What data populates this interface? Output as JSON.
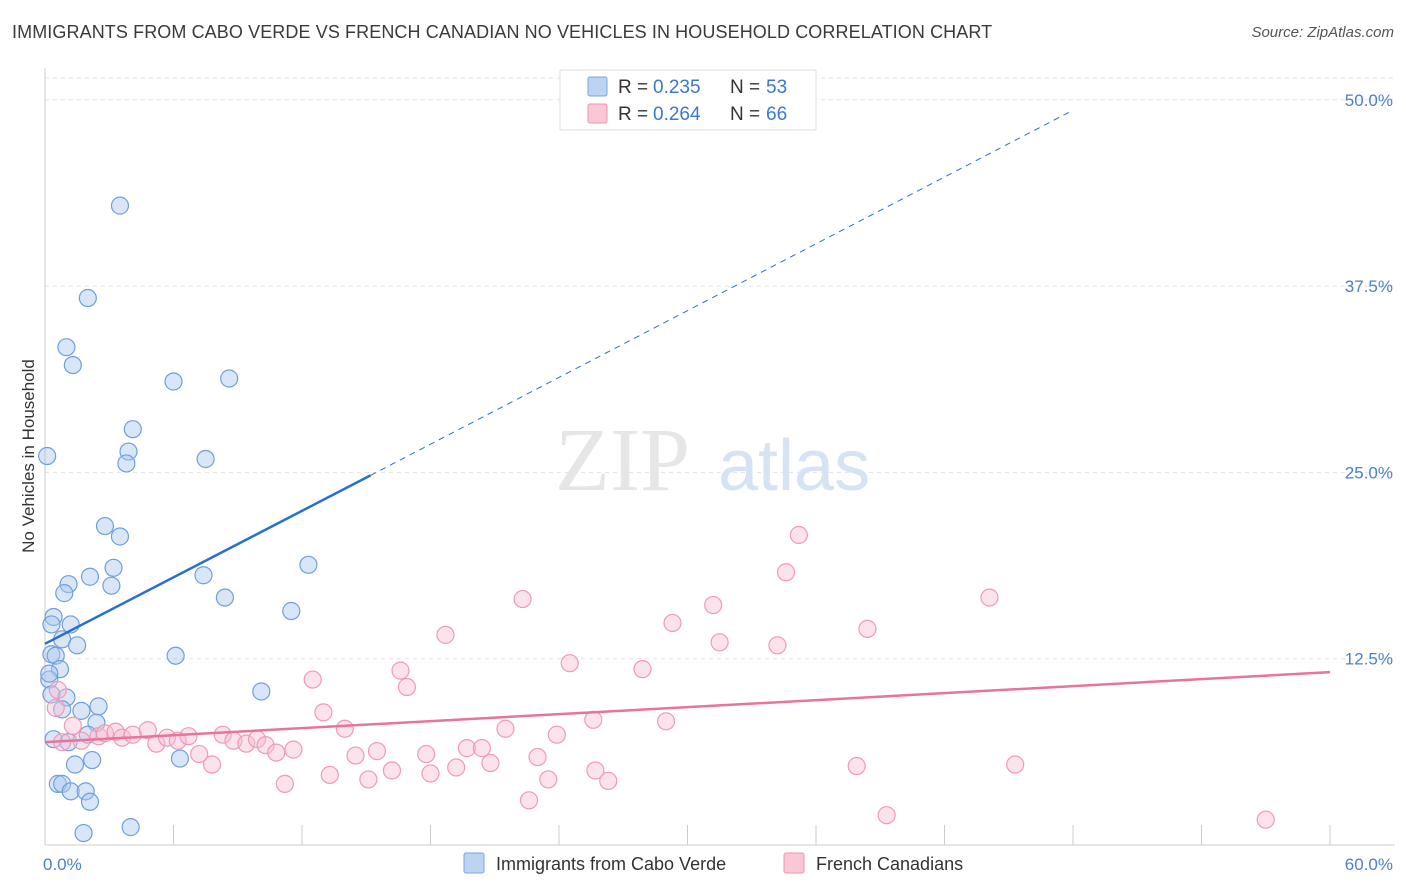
{
  "chart_data": {
    "type": "scatter",
    "title": "IMMIGRANTS FROM CABO VERDE VS FRENCH CANADIAN NO VEHICLES IN HOUSEHOLD CORRELATION CHART",
    "source": "Source: ZipAtlas.com",
    "xlabel": "",
    "ylabel": "No Vehicles in Household",
    "xlim": [
      0,
      60
    ],
    "ylim": [
      0,
      52
    ],
    "x_tick_labels": [
      "0.0%",
      "60.0%"
    ],
    "y_ticks": [
      12.5,
      25.0,
      37.5,
      50.0
    ],
    "y_tick_labels": [
      "12.5%",
      "25.0%",
      "37.5%",
      "50.0%"
    ],
    "watermark": "ZIPatlas",
    "series": [
      {
        "name": "Immigrants from Cabo Verde",
        "color": "#8fb8ea",
        "line_color": "#2a6fcf",
        "R": "0.235",
        "N": "53",
        "trend": {
          "x0": 0,
          "y0": 13.5,
          "x1": 15.2,
          "y1": 24.8,
          "dash_to_x": 48,
          "dash_to_y": 49.3
        },
        "points": [
          [
            3.5,
            42.9
          ],
          [
            2.0,
            36.7
          ],
          [
            1.0,
            33.4
          ],
          [
            1.3,
            32.2
          ],
          [
            6.0,
            31.1
          ],
          [
            8.6,
            31.3
          ],
          [
            4.1,
            27.9
          ],
          [
            3.9,
            26.4
          ],
          [
            3.8,
            25.6
          ],
          [
            7.5,
            25.9
          ],
          [
            0.1,
            26.1
          ],
          [
            2.8,
            21.4
          ],
          [
            3.5,
            20.7
          ],
          [
            3.2,
            18.6
          ],
          [
            2.1,
            18.0
          ],
          [
            12.3,
            18.8
          ],
          [
            7.4,
            18.1
          ],
          [
            1.1,
            17.5
          ],
          [
            3.1,
            17.4
          ],
          [
            0.9,
            16.9
          ],
          [
            8.4,
            16.6
          ],
          [
            11.5,
            15.7
          ],
          [
            0.4,
            15.3
          ],
          [
            0.3,
            14.8
          ],
          [
            1.2,
            14.8
          ],
          [
            0.8,
            13.8
          ],
          [
            1.5,
            13.4
          ],
          [
            6.1,
            12.7
          ],
          [
            0.3,
            12.8
          ],
          [
            0.5,
            12.7
          ],
          [
            0.7,
            11.8
          ],
          [
            0.2,
            11.1
          ],
          [
            10.1,
            10.3
          ],
          [
            0.3,
            10.1
          ],
          [
            1.0,
            9.9
          ],
          [
            2.5,
            9.3
          ],
          [
            1.7,
            9.0
          ],
          [
            0.8,
            9.1
          ],
          [
            2.4,
            8.2
          ],
          [
            2.0,
            7.4
          ],
          [
            0.4,
            7.1
          ],
          [
            1.1,
            6.9
          ],
          [
            6.3,
            5.8
          ],
          [
            2.2,
            5.7
          ],
          [
            1.4,
            5.4
          ],
          [
            0.6,
            4.1
          ],
          [
            0.8,
            4.1
          ],
          [
            1.2,
            3.6
          ],
          [
            1.9,
            3.6
          ],
          [
            2.1,
            2.9
          ],
          [
            4.0,
            1.2
          ],
          [
            1.8,
            0.8
          ],
          [
            0.2,
            11.5
          ]
        ]
      },
      {
        "name": "French Canadians",
        "color": "#f5a9c0",
        "line_color": "#e8739b",
        "R": "0.264",
        "N": "66",
        "trend": {
          "x0": 0,
          "y0": 6.9,
          "x1": 60,
          "y1": 11.6
        },
        "points": [
          [
            0.5,
            9.2
          ],
          [
            1.3,
            8.0
          ],
          [
            0.8,
            6.9
          ],
          [
            1.7,
            7.0
          ],
          [
            2.5,
            7.3
          ],
          [
            2.8,
            7.5
          ],
          [
            3.3,
            7.6
          ],
          [
            3.6,
            7.2
          ],
          [
            4.1,
            7.4
          ],
          [
            4.8,
            7.7
          ],
          [
            5.2,
            6.8
          ],
          [
            5.7,
            7.2
          ],
          [
            6.2,
            7.0
          ],
          [
            6.7,
            7.3
          ],
          [
            7.2,
            6.1
          ],
          [
            7.8,
            5.4
          ],
          [
            8.3,
            7.4
          ],
          [
            8.8,
            7.0
          ],
          [
            9.4,
            6.8
          ],
          [
            9.9,
            7.1
          ],
          [
            10.3,
            6.7
          ],
          [
            10.8,
            6.2
          ],
          [
            11.2,
            4.1
          ],
          [
            11.6,
            6.4
          ],
          [
            12.5,
            11.1
          ],
          [
            13.0,
            8.9
          ],
          [
            13.3,
            4.7
          ],
          [
            14.0,
            7.8
          ],
          [
            14.5,
            6.0
          ],
          [
            15.1,
            4.4
          ],
          [
            15.5,
            6.3
          ],
          [
            16.2,
            5.0
          ],
          [
            16.6,
            11.7
          ],
          [
            16.9,
            10.6
          ],
          [
            17.8,
            6.1
          ],
          [
            18.0,
            4.8
          ],
          [
            18.7,
            14.1
          ],
          [
            19.2,
            5.2
          ],
          [
            19.7,
            6.5
          ],
          [
            20.4,
            6.5
          ],
          [
            20.8,
            5.5
          ],
          [
            21.5,
            7.8
          ],
          [
            22.3,
            16.5
          ],
          [
            22.6,
            3.0
          ],
          [
            23.0,
            5.9
          ],
          [
            23.5,
            4.4
          ],
          [
            23.9,
            7.4
          ],
          [
            24.5,
            12.2
          ],
          [
            25.6,
            8.4
          ],
          [
            25.7,
            5.0
          ],
          [
            26.3,
            4.3
          ],
          [
            27.9,
            11.8
          ],
          [
            29.0,
            8.3
          ],
          [
            29.3,
            14.9
          ],
          [
            31.2,
            16.1
          ],
          [
            31.5,
            13.6
          ],
          [
            34.2,
            13.4
          ],
          [
            34.6,
            18.3
          ],
          [
            35.2,
            20.8
          ],
          [
            37.9,
            5.3
          ],
          [
            38.4,
            14.5
          ],
          [
            39.3,
            2.0
          ],
          [
            44.1,
            16.6
          ],
          [
            45.3,
            5.4
          ],
          [
            57.0,
            1.7
          ],
          [
            0.6,
            10.4
          ]
        ]
      }
    ]
  }
}
